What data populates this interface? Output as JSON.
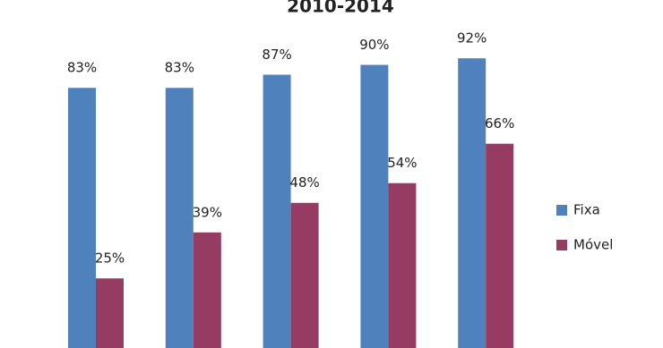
{
  "chart_data": {
    "type": "bar",
    "title": "2010-2014",
    "categories": [
      null,
      null,
      null,
      null,
      null
    ],
    "series": [
      {
        "name": "Fixa",
        "color": "#4f81bd",
        "values": [
          83,
          83,
          87,
          90,
          92
        ],
        "value_labels": [
          "83%",
          "83%",
          "87%",
          "90%",
          "92%"
        ]
      },
      {
        "name": "Móvel",
        "color": "#963c63",
        "values": [
          25,
          39,
          48,
          54,
          66
        ],
        "value_labels": [
          "25%",
          "39%",
          "48%",
          "54%",
          "66%"
        ]
      }
    ]
  }
}
